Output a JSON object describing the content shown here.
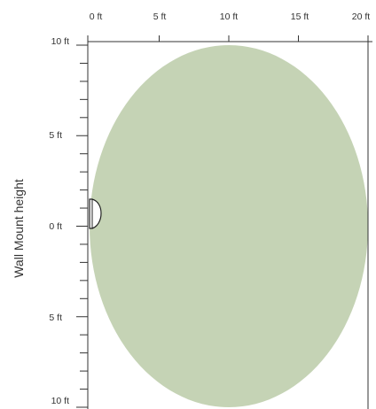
{
  "y_axis_title": "Wall Mount height",
  "x_axis": {
    "ticks": [
      "0 ft",
      "5 ft",
      "10 ft",
      "15 ft",
      "20 ft"
    ]
  },
  "y_axis": {
    "ticks": [
      "10 ft",
      "5 ft",
      "0 ft",
      "5 ft",
      "10 ft"
    ]
  },
  "coverage": {
    "shape": "ellipse",
    "color": "#c5d3b5",
    "x_range_ft": [
      0,
      20
    ],
    "y_range_ft": [
      -10,
      10
    ]
  },
  "sensor": {
    "shape": "half-dome",
    "x_ft": 0,
    "y_ft": 1
  },
  "colors": {
    "axis": "#333333",
    "coverage_fill": "#c5d3b5",
    "sensor_stroke": "#222222"
  }
}
